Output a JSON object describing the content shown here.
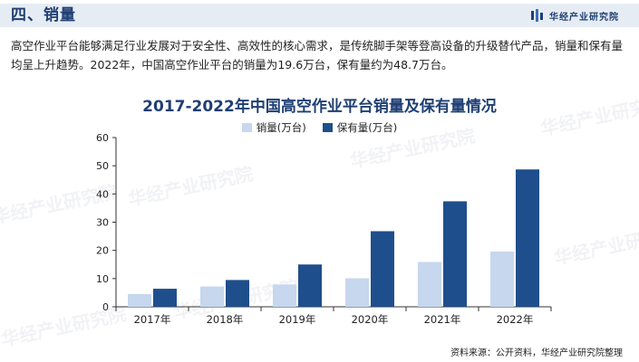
{
  "header": {
    "title": "四、销量",
    "brand": "华经产业研究院"
  },
  "body_text": "高空作业平台能够满足行业发展对于安全性、高效性的核心需求，是传统脚手架等登高设备的升级替代产品，销量和保有量均呈上升趋势。2022年，中国高空作业平台的销量为19.6万台，保有量约为48.7万台。",
  "watermark": "华经产业研究院",
  "source": "资料来源：公开资料，华经产业研究院整理",
  "colors": {
    "sales": "#c6d7ee",
    "inventory": "#1f4e8c",
    "title": "#1f3f73"
  },
  "chart_data": {
    "type": "bar",
    "title": "2017-2022年中国高空作业平台销量及保有量情况",
    "categories": [
      "2017年",
      "2018年",
      "2019年",
      "2020年",
      "2021年",
      "2022年"
    ],
    "series": [
      {
        "name": "销量(万台)",
        "values": [
          4.5,
          7.2,
          7.9,
          10.1,
          15.9,
          19.6
        ]
      },
      {
        "name": "保有量(万台)",
        "values": [
          6.4,
          9.5,
          15.0,
          26.8,
          37.4,
          48.7
        ]
      }
    ],
    "ylim": [
      0,
      60
    ],
    "yticks": [
      0,
      10,
      20,
      30,
      40,
      50,
      60
    ],
    "grid": false,
    "legend": "top-center"
  }
}
